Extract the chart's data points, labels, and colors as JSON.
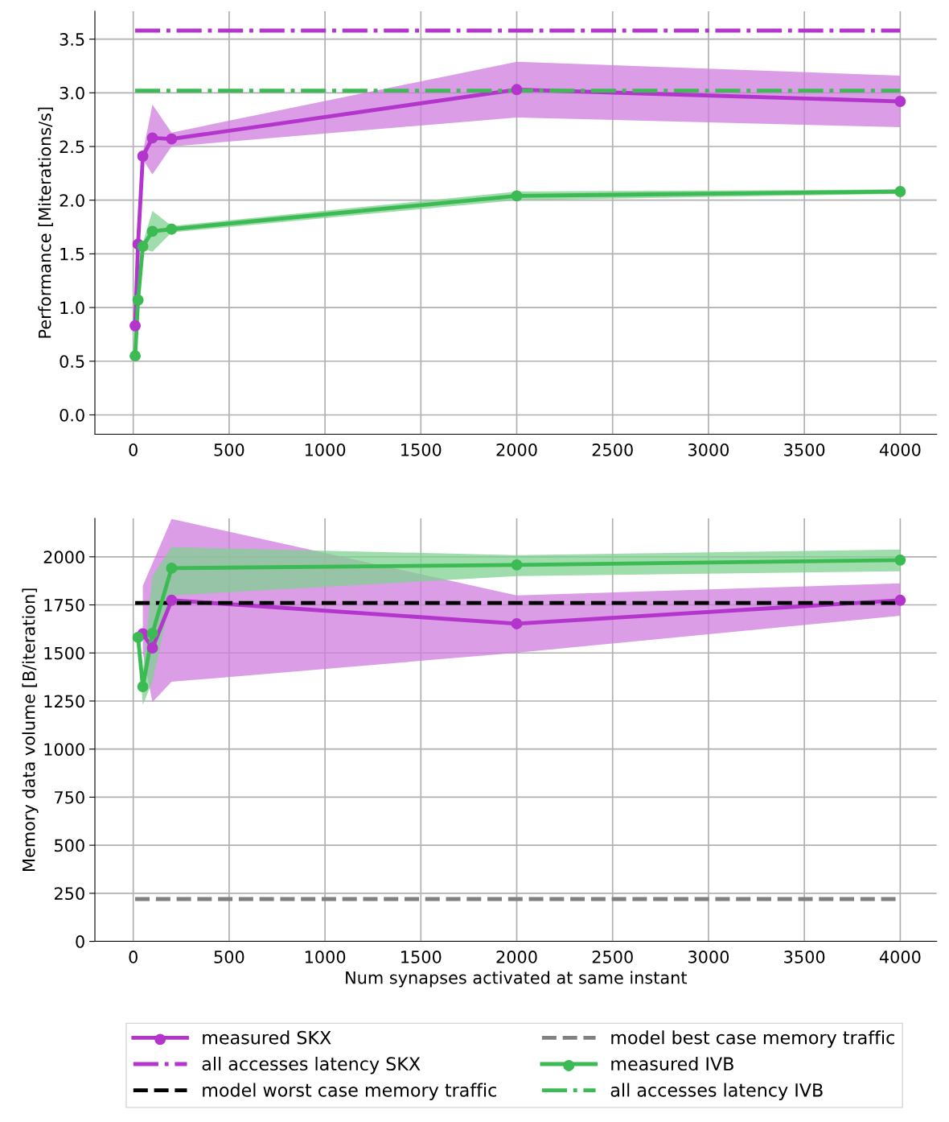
{
  "chart_data": [
    {
      "type": "line",
      "ylabel": "Performance [Miterations/s]",
      "xlim": [
        -200,
        4190
      ],
      "ylim": [
        -0.18,
        3.76
      ],
      "xticks": [
        0,
        500,
        1000,
        1500,
        2000,
        2500,
        3000,
        3500,
        4000
      ],
      "yticks": [
        {
          "value": 0,
          "label": "0.0"
        },
        0.5,
        {
          "value": 1,
          "label": "1.0"
        },
        1.5,
        {
          "value": 2,
          "label": "2.0"
        },
        2.5,
        {
          "value": 3,
          "label": "3.0"
        },
        3.5
      ],
      "grid": true,
      "legend": "bottom",
      "series": [
        {
          "name": "measured SKX",
          "color": "#b435cc",
          "marker": "circle",
          "line_style": "solid",
          "x": [
            10,
            25,
            50,
            100,
            200,
            2000,
            4000
          ],
          "values": [
            0.83,
            1.59,
            2.41,
            2.58,
            2.57,
            3.03,
            2.92
          ],
          "lower": [
            0.81,
            1.57,
            2.38,
            2.24,
            2.5,
            2.77,
            2.68
          ],
          "upper": [
            0.85,
            1.61,
            2.44,
            2.89,
            2.63,
            3.29,
            3.16
          ]
        },
        {
          "name": "all accesses latency SKX",
          "color": "#b435cc",
          "marker": "none",
          "line_style": "dashdot",
          "x": [
            10,
            4000
          ],
          "values": [
            3.58,
            3.58
          ]
        },
        {
          "name": "measured IVB",
          "color": "#3cba54",
          "marker": "circle",
          "line_style": "solid",
          "x": [
            10,
            25,
            50,
            100,
            200,
            2000,
            4000
          ],
          "values": [
            0.55,
            1.07,
            1.57,
            1.71,
            1.73,
            2.04,
            2.08
          ],
          "lower": [
            0.53,
            1.05,
            1.55,
            1.52,
            1.7,
            2.0,
            2.06
          ],
          "upper": [
            0.57,
            1.09,
            1.6,
            1.9,
            1.76,
            2.08,
            2.1
          ]
        },
        {
          "name": "all accesses latency IVB",
          "color": "#3cba54",
          "marker": "none",
          "line_style": "dashdot",
          "x": [
            10,
            4000
          ],
          "values": [
            3.02,
            3.02
          ]
        }
      ]
    },
    {
      "type": "line",
      "xlabel": "Num synapses activated at same instant",
      "ylabel": "Memory data volume [B/iteration]",
      "xlim": [
        -200,
        4190
      ],
      "ylim": [
        0,
        2200
      ],
      "xticks": [
        0,
        500,
        1000,
        1500,
        2000,
        2500,
        3000,
        3500,
        4000
      ],
      "yticks": [
        0,
        250,
        500,
        750,
        1000,
        1250,
        1500,
        1750,
        2000
      ],
      "grid": true,
      "legend": "bottom",
      "series": [
        {
          "name": "measured SKX",
          "color": "#b435cc",
          "marker": "circle",
          "line_style": "solid",
          "x": [
            50,
            100,
            200,
            2000,
            4000
          ],
          "values": [
            1600,
            1526,
            1774,
            1652,
            1774
          ],
          "lower": [
            1500,
            1245,
            1350,
            1501,
            1694
          ],
          "upper": [
            1850,
            1966,
            2197,
            1799,
            1862
          ]
        },
        {
          "name": "model worst case memory traffic",
          "color": "#000000",
          "marker": "none",
          "line_style": "dashed",
          "x": [
            10,
            4000
          ],
          "values": [
            1760,
            1760
          ]
        },
        {
          "name": "model best case memory traffic",
          "color": "#808080",
          "marker": "none",
          "line_style": "dashed",
          "x": [
            10,
            4000
          ],
          "values": [
            220,
            220
          ]
        },
        {
          "name": "measured IVB",
          "color": "#3cba54",
          "marker": "circle",
          "line_style": "solid",
          "x": [
            25,
            50,
            100,
            200,
            2000,
            4000
          ],
          "values": [
            1581,
            1325,
            1602,
            1941,
            1958,
            1983
          ],
          "lower": [
            1560,
            1230,
            1350,
            1799,
            1900,
            1925
          ],
          "upper": [
            1600,
            1400,
            1900,
            2050,
            2009,
            2038
          ]
        }
      ]
    }
  ]
}
